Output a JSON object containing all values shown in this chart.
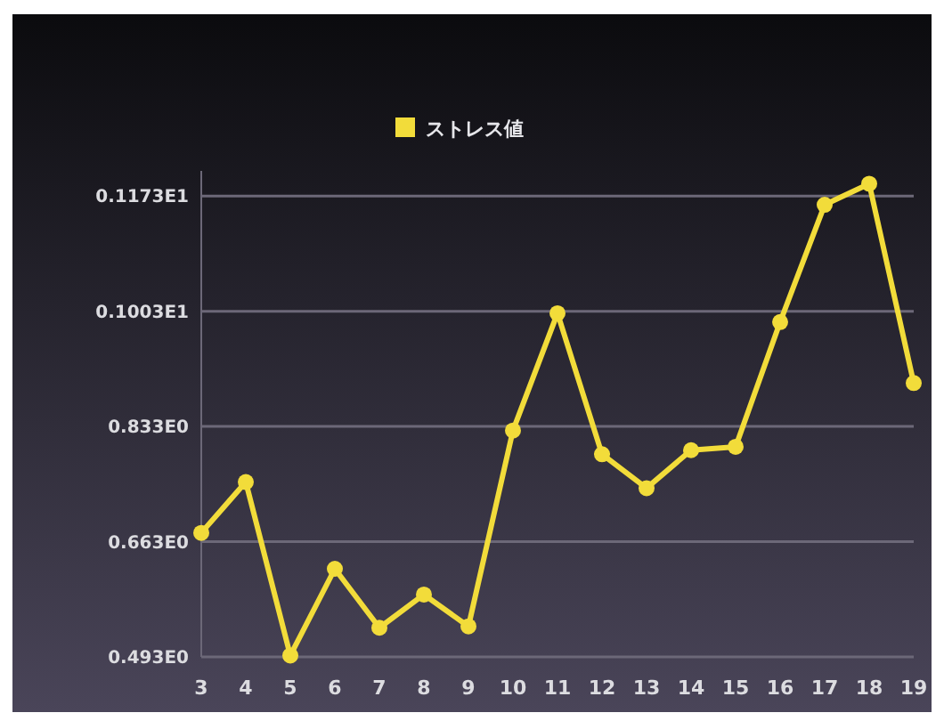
{
  "chart_data": {
    "type": "line",
    "categories": [
      "3",
      "4",
      "5",
      "6",
      "7",
      "8",
      "9",
      "10",
      "11",
      "12",
      "13",
      "14",
      "15",
      "16",
      "17",
      "18",
      "19"
    ],
    "series": [
      {
        "name": "ストレス値",
        "color": "#f2dc3a",
        "values": [
          0.676,
          0.751,
          0.495,
          0.623,
          0.536,
          0.585,
          0.538,
          0.827,
          1.0,
          0.792,
          0.742,
          0.798,
          0.803,
          0.987,
          1.16,
          1.191,
          0.897
        ]
      }
    ],
    "ylim": [
      0.493,
      1.21
    ],
    "yticks": [
      {
        "value": 0.493,
        "label": "0.493E0"
      },
      {
        "value": 0.663,
        "label": "0.663E0"
      },
      {
        "value": 0.833,
        "label": "0.833E0"
      },
      {
        "value": 1.003,
        "label": "0.1003E1"
      },
      {
        "value": 1.173,
        "label": "0.1173E1"
      }
    ],
    "grid": "y",
    "legend": "top",
    "marker": "circle",
    "line_style": "solid"
  }
}
